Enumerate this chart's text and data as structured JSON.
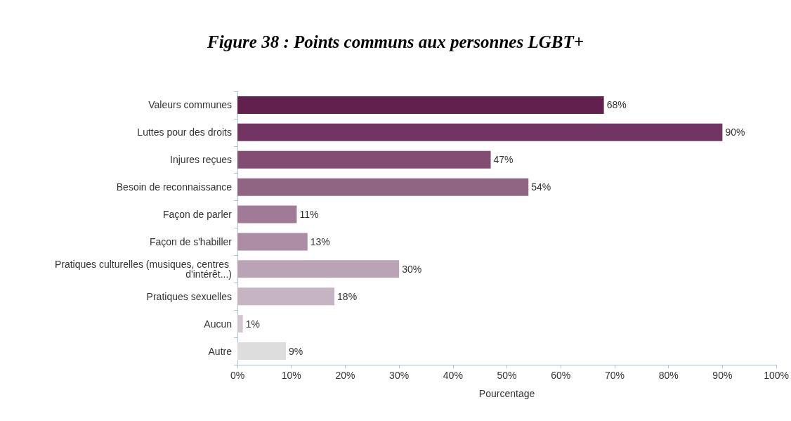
{
  "chart_data": {
    "type": "bar",
    "orientation": "horizontal",
    "title": "Figure 38 : Points communs aux personnes LGBT+",
    "xlabel": "Pourcentage",
    "categories": [
      "Valeurs communes",
      "Luttes pour des droits",
      "Injures reçues",
      "Besoin de reconnaissance",
      "Façon de parler",
      "Façon de s'habiller",
      "Pratiques culturelles (musiques, centres d'intérêt...)",
      "Pratiques sexuelles",
      "Aucun",
      "Autre"
    ],
    "values": [
      68,
      90,
      47,
      54,
      11,
      13,
      30,
      18,
      1,
      9
    ],
    "value_labels": [
      "68%",
      "90%",
      "47%",
      "54%",
      "11%",
      "13%",
      "30%",
      "18%",
      "1%",
      "9%"
    ],
    "colors": [
      "#62204f",
      "#723563",
      "#834d73",
      "#906584",
      "#a07a96",
      "#ad8ca6",
      "#b9a3b5",
      "#c6b4c3",
      "#d3c6d1",
      "#dddddd"
    ],
    "xlim": [
      0,
      100
    ],
    "xticks": [
      {
        "value": 0,
        "label": "0%"
      },
      {
        "value": 10,
        "label": "10%"
      },
      {
        "value": 20,
        "label": "20%"
      },
      {
        "value": 30,
        "label": "30%"
      },
      {
        "value": 40,
        "label": "40%"
      },
      {
        "value": 50,
        "label": "50%"
      },
      {
        "value": 60,
        "label": "60%"
      },
      {
        "value": 70,
        "label": "70%"
      },
      {
        "value": 80,
        "label": "80%"
      },
      {
        "value": 90,
        "label": "90%"
      },
      {
        "value": 100,
        "label": "100%"
      }
    ]
  }
}
